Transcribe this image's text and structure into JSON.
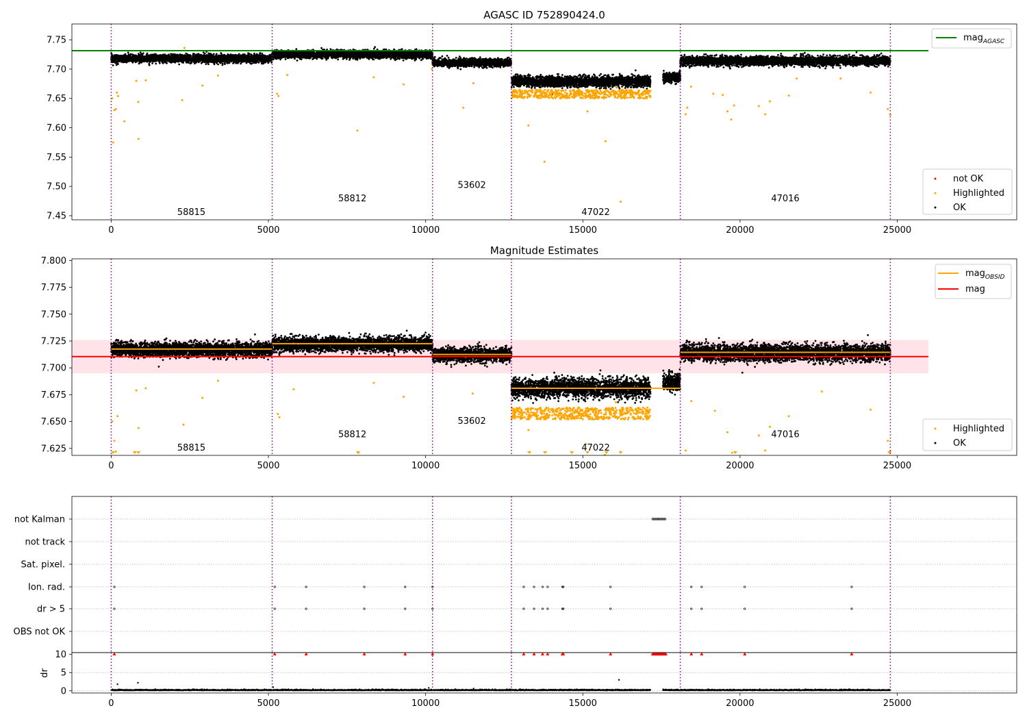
{
  "figure": {
    "background": "#ffffff",
    "colors": {
      "ok": "#000000",
      "highlighted": "#ffa500",
      "not_ok": "#ff0000",
      "mag_agasc": "#008000",
      "mag": "#ff0000",
      "mag_obsid": "#ffa500",
      "band": "#ffc0cb",
      "obsid_lines": "#800080",
      "grid": "#b0b0b0"
    }
  },
  "chart_data": [
    {
      "type": "scatter",
      "title": "AGASC ID 752890424.0",
      "xlim": [
        -1250,
        28800
      ],
      "ylim": [
        7.443,
        7.777
      ],
      "xticks": [
        0,
        5000,
        10000,
        15000,
        20000,
        25000
      ],
      "yticks": [
        7.45,
        7.5,
        7.55,
        7.6,
        7.65,
        7.7,
        7.75
      ],
      "ytick_labels": [
        "7.45",
        "7.50",
        "7.55",
        "7.60",
        "7.65",
        "7.70",
        "7.75"
      ],
      "obsid_boundaries": [
        0,
        5120,
        10220,
        12730,
        18100,
        24780
      ],
      "obsids": [
        {
          "label": "58815",
          "x": 2550,
          "y": 7.456
        },
        {
          "label": "58812",
          "x": 7670,
          "y": 7.479
        },
        {
          "label": "53602",
          "x": 11470,
          "y": 7.502
        },
        {
          "label": "47022",
          "x": 15410,
          "y": 7.456
        },
        {
          "label": "47016",
          "x": 21440,
          "y": 7.479
        }
      ],
      "segments": [
        {
          "x0": 0,
          "x1": 5120,
          "center": 7.718,
          "spread": 0.006
        },
        {
          "x0": 5120,
          "x1": 10220,
          "center": 7.725,
          "spread": 0.006
        },
        {
          "x0": 10220,
          "x1": 12730,
          "center": 7.711,
          "spread": 0.006
        },
        {
          "x0": 12730,
          "x1": 17150,
          "center": 7.679,
          "spread": 0.008
        },
        {
          "x0": 17550,
          "x1": 18100,
          "center": 7.686,
          "spread": 0.008
        },
        {
          "x0": 18100,
          "x1": 24780,
          "center": 7.714,
          "spread": 0.007
        }
      ],
      "highlighted_points": [
        [
          30,
          7.65
        ],
        [
          60,
          7.575
        ],
        [
          100,
          7.63
        ],
        [
          150,
          7.632
        ],
        [
          180,
          7.66
        ],
        [
          220,
          7.654
        ],
        [
          420,
          7.611
        ],
        [
          800,
          7.68
        ],
        [
          860,
          7.644
        ],
        [
          870,
          7.581
        ],
        [
          1100,
          7.681
        ],
        [
          2260,
          7.647
        ],
        [
          2330,
          7.736
        ],
        [
          2900,
          7.672
        ],
        [
          3400,
          7.689
        ],
        [
          5280,
          7.658
        ],
        [
          5320,
          7.654
        ],
        [
          5600,
          7.69
        ],
        [
          7830,
          7.595
        ],
        [
          8350,
          7.686
        ],
        [
          9300,
          7.674
        ],
        [
          10200,
          7.7
        ],
        [
          11200,
          7.634
        ],
        [
          11520,
          7.676
        ],
        [
          13270,
          7.604
        ],
        [
          13780,
          7.542
        ],
        [
          15150,
          7.628
        ],
        [
          15720,
          7.577
        ],
        [
          16070,
          7.67
        ],
        [
          16200,
          7.474
        ],
        [
          18270,
          7.623
        ],
        [
          18320,
          7.634
        ],
        [
          18440,
          7.67
        ],
        [
          19150,
          7.658
        ],
        [
          19450,
          7.656
        ],
        [
          19600,
          7.628
        ],
        [
          19720,
          7.614
        ],
        [
          19810,
          7.638
        ],
        [
          20600,
          7.637
        ],
        [
          20800,
          7.623
        ],
        [
          20950,
          7.645
        ],
        [
          21550,
          7.655
        ],
        [
          21800,
          7.684
        ],
        [
          23200,
          7.684
        ],
        [
          24150,
          7.66
        ],
        [
          24700,
          7.632
        ],
        [
          24780,
          7.622
        ]
      ],
      "highlight_band": {
        "x0": 12730,
        "x1": 17150,
        "y0": 7.65,
        "y1": 7.665
      },
      "lines": [
        {
          "name": "mag_AGASC",
          "y": 7.7315,
          "x0": -1250,
          "x1": 25990
        }
      ],
      "legend_top": [
        {
          "name": "mag",
          "sub": "AGASC"
        }
      ],
      "legend_bottom": [
        "not OK",
        "Highlighted",
        "OK"
      ]
    },
    {
      "type": "scatter",
      "title": "Magnitude Estimates",
      "xlim": [
        -1250,
        28800
      ],
      "ylim": [
        7.6185,
        7.8015
      ],
      "xticks": [
        0,
        5000,
        10000,
        15000,
        20000,
        25000
      ],
      "yticks": [
        7.625,
        7.65,
        7.675,
        7.7,
        7.725,
        7.75,
        7.775,
        7.8
      ],
      "ytick_labels": [
        "7.625",
        "7.650",
        "7.675",
        "7.700",
        "7.725",
        "7.750",
        "7.775",
        "7.800"
      ],
      "obsid_boundaries": [
        0,
        5120,
        10220,
        12730,
        18100,
        24780
      ],
      "obsids": [
        {
          "label": "58815",
          "x": 2550,
          "y": 7.6255
        },
        {
          "label": "58812",
          "x": 7670,
          "y": 7.638
        },
        {
          "label": "53602",
          "x": 11470,
          "y": 7.6505
        },
        {
          "label": "47022",
          "x": 15410,
          "y": 7.6255
        },
        {
          "label": "47016",
          "x": 21440,
          "y": 7.638
        }
      ],
      "segments": [
        {
          "x0": 0,
          "x1": 5120,
          "center": 7.717,
          "spread": 0.006
        },
        {
          "x0": 5120,
          "x1": 10220,
          "center": 7.722,
          "spread": 0.006
        },
        {
          "x0": 10220,
          "x1": 12730,
          "center": 7.712,
          "spread": 0.006
        },
        {
          "x0": 12730,
          "x1": 17150,
          "center": 7.681,
          "spread": 0.008
        },
        {
          "x0": 17550,
          "x1": 18100,
          "center": 7.687,
          "spread": 0.008
        },
        {
          "x0": 18100,
          "x1": 24780,
          "center": 7.714,
          "spread": 0.007
        }
      ],
      "highlighted_points": [
        [
          30,
          7.65
        ],
        [
          100,
          7.632
        ],
        [
          150,
          7.622
        ],
        [
          200,
          7.655
        ],
        [
          800,
          7.679
        ],
        [
          870,
          7.644
        ],
        [
          1100,
          7.681
        ],
        [
          2300,
          7.647
        ],
        [
          2900,
          7.672
        ],
        [
          3400,
          7.688
        ],
        [
          5300,
          7.657
        ],
        [
          5350,
          7.654
        ],
        [
          5800,
          7.68
        ],
        [
          7860,
          7.621
        ],
        [
          8350,
          7.686
        ],
        [
          9300,
          7.673
        ],
        [
          11500,
          7.676
        ],
        [
          13270,
          7.642
        ],
        [
          15100,
          7.629
        ],
        [
          15700,
          7.619
        ],
        [
          16050,
          7.668
        ],
        [
          18270,
          7.623
        ],
        [
          18450,
          7.669
        ],
        [
          19200,
          7.66
        ],
        [
          19600,
          7.64
        ],
        [
          19750,
          7.621
        ],
        [
          20600,
          7.637
        ],
        [
          20800,
          7.623
        ],
        [
          20950,
          7.645
        ],
        [
          21550,
          7.655
        ],
        [
          22600,
          7.678
        ],
        [
          24150,
          7.661
        ],
        [
          24700,
          7.632
        ],
        [
          24780,
          7.622
        ]
      ],
      "floor_markers": [
        60,
        750,
        870,
        7850,
        13300,
        13800,
        14650,
        15150,
        15750,
        16200,
        19850,
        24750
      ],
      "highlight_band": {
        "x0": 12730,
        "x1": 17150,
        "y0": 7.652,
        "y1": 7.663
      },
      "band": {
        "x0": -1250,
        "x1": 25990,
        "y0": 7.695,
        "y1": 7.726
      },
      "obsid_means": [
        {
          "x0": 0,
          "x1": 5120,
          "y": 7.7175
        },
        {
          "x0": 5120,
          "x1": 10220,
          "y": 7.7225
        },
        {
          "x0": 10220,
          "x1": 12730,
          "y": 7.7125
        },
        {
          "x0": 12730,
          "x1": 18100,
          "y": 7.681
        },
        {
          "x0": 18100,
          "x1": 24780,
          "y": 7.7145
        }
      ],
      "lines": [
        {
          "name": "mag",
          "y": 7.7105,
          "x0": -1250,
          "x1": 25990
        }
      ],
      "legend_top": [
        {
          "name": "mag",
          "sub": "OBSID"
        },
        {
          "name": "mag",
          "sub": ""
        }
      ],
      "legend_bottom": [
        "Highlighted",
        "OK"
      ]
    },
    {
      "type": "scatter",
      "title": "",
      "xlim": [
        -1250,
        28800
      ],
      "flag_rows": [
        "not Kalman",
        "not track",
        "Sat. pixel.",
        "Ion. rad.",
        "dr > 5",
        "OBS not OK"
      ],
      "flag_events": {
        "not Kalman": [
          [
            17220,
            17650
          ]
        ],
        "Ion. rad.": [
          100,
          5200,
          6200,
          8050,
          9350,
          10220,
          13120,
          13450,
          13720,
          13880,
          14350,
          14380,
          15880,
          18450,
          18780,
          20150,
          23550
        ],
        "dr > 5": [
          100,
          5200,
          6200,
          8050,
          9350,
          10220,
          13120,
          13450,
          13720,
          13880,
          14350,
          14380,
          15880,
          18450,
          18780,
          20150,
          23550
        ]
      },
      "dr_ylim": [
        -0.6,
        10.5
      ],
      "dr_yticks": [
        0,
        5,
        10
      ],
      "dr_ytick_labels": [
        "0",
        "5",
        "10"
      ],
      "dr_ylabel": "dr",
      "dr_not_ok": [
        100,
        5200,
        6200,
        8050,
        9350,
        10220,
        13120,
        13450,
        13720,
        13880,
        14350,
        14380,
        15880,
        18450,
        18780,
        20150,
        23550
      ],
      "dr_not_ok_range": [
        17220,
        17650
      ],
      "dr_outliers": [
        [
          200,
          1.8
        ],
        [
          850,
          2.2
        ],
        [
          16150,
          3.0
        ],
        [
          5150,
          1.0
        ],
        [
          10100,
          0.8
        ]
      ],
      "dr_gap": [
        17150,
        17550
      ],
      "obsid_boundaries": [
        0,
        5120,
        10220,
        12730,
        18100,
        24780
      ],
      "xticks": [
        0,
        5000,
        10000,
        15000,
        20000,
        25000
      ]
    }
  ]
}
